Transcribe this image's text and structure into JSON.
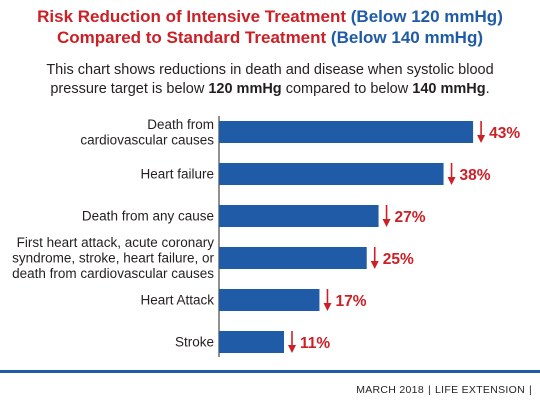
{
  "title": {
    "line1_red": "Risk Reduction of Intensive Treatment",
    "line1_blue": "(Below 120 mmHg)",
    "line2_red": "Compared to Standard Treatment",
    "line2_blue": "(Below 140 mmHg)"
  },
  "subtitle": {
    "part1": "This chart shows reductions in death and disease when systolic blood",
    "part2": "pressure target is below",
    "bold1": "120 mmHg",
    "part3": "compared to below",
    "bold2": "140 mmHg",
    "part4": "."
  },
  "colors": {
    "title_red": "#cc2027",
    "title_blue": "#1f5ba6",
    "bar": "#1f5ba6",
    "value_red": "#cc2027"
  },
  "chart_data": {
    "type": "bar",
    "orientation": "horizontal",
    "categories": [
      [
        "Death from",
        "cardiovascular causes"
      ],
      [
        "Heart failure"
      ],
      [
        "Death from any cause"
      ],
      [
        "First heart attack, acute coronary",
        "syndrome, stroke, heart failure, or",
        "death from cardiovascular causes"
      ],
      [
        "Heart Attack"
      ],
      [
        "Stroke"
      ]
    ],
    "values": [
      43,
      38,
      27,
      25,
      17,
      11
    ],
    "value_labels": [
      "43%",
      "38%",
      "27%",
      "25%",
      "17%",
      "11%"
    ],
    "value_marker": "down-arrow",
    "xlim": [
      0,
      44
    ]
  },
  "footer": {
    "date": "MARCH 2018",
    "publication": "LIFE EXTENSION"
  }
}
